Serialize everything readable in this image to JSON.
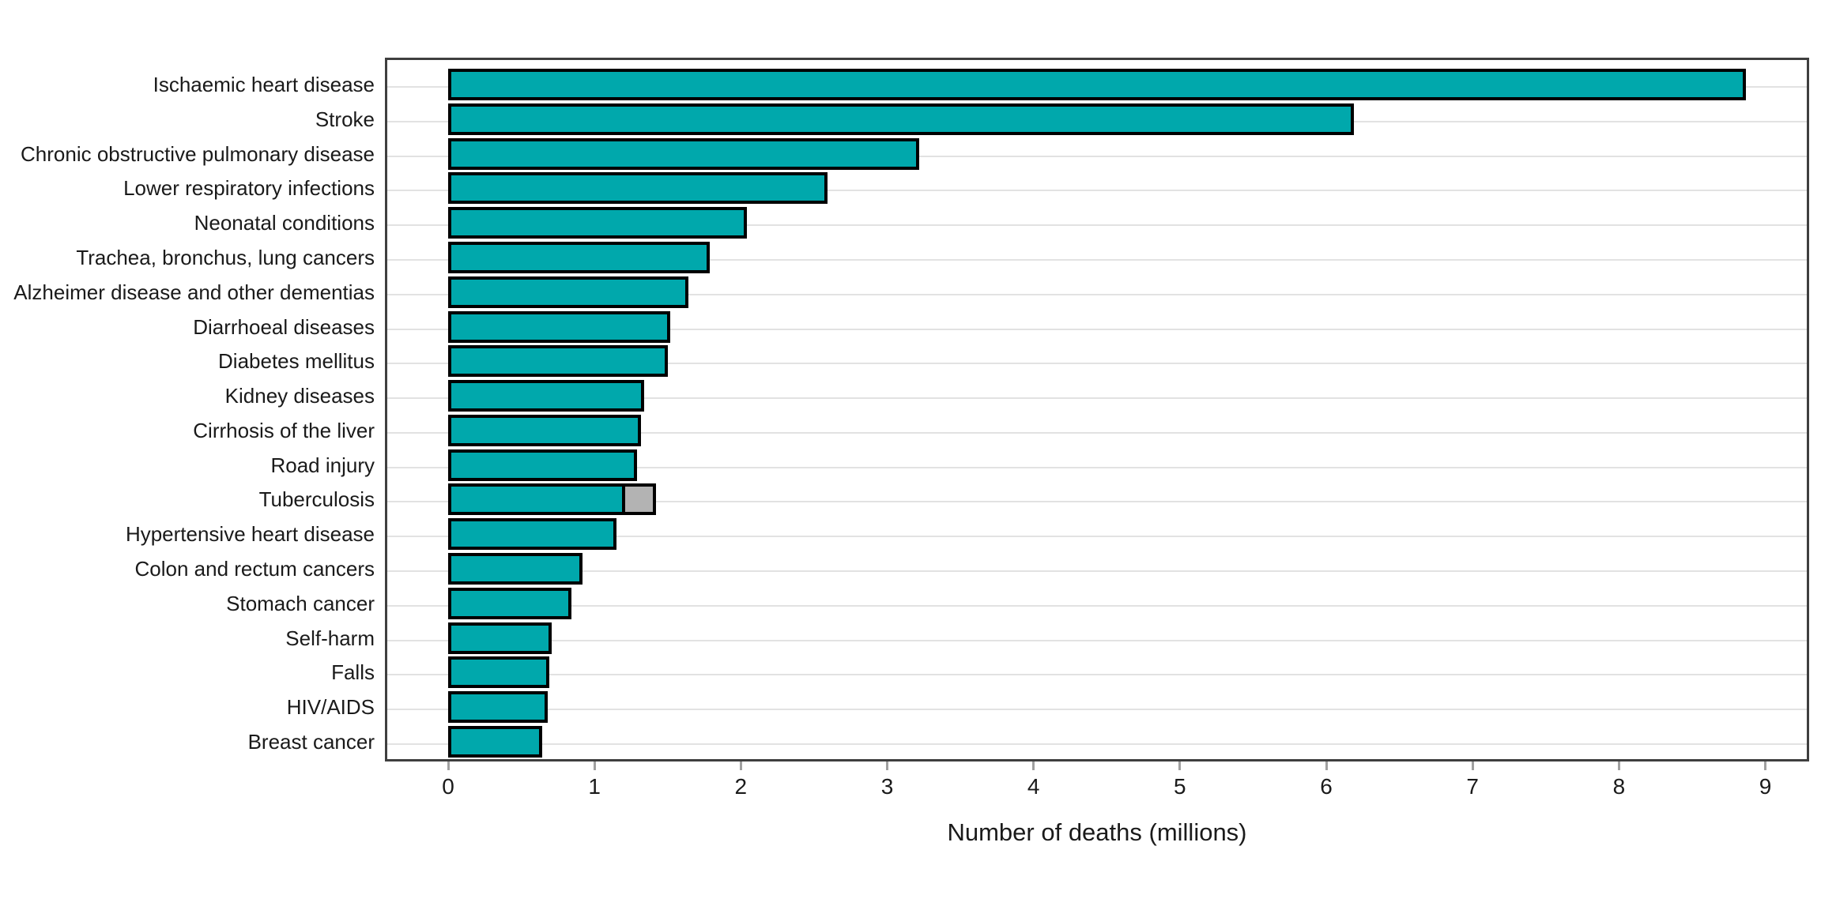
{
  "chart_data": {
    "type": "bar",
    "orientation": "horizontal",
    "title": "",
    "xlabel": "Number of deaths (millions)",
    "ylabel": "",
    "xlim": [
      0,
      9.3
    ],
    "x_ticks": [
      0,
      1,
      2,
      3,
      4,
      5,
      6,
      7,
      8,
      9
    ],
    "grid": "horizontal category gridlines only, no vertical gridlines",
    "legend": "none",
    "bar_color": "#00a8ac",
    "bar_border_color": "#000000",
    "gridline_color": "#e2e2e2",
    "panel_border_color": "#3f3f3f",
    "categories": [
      "Ischaemic heart disease",
      "Stroke",
      "Chronic obstructive pulmonary disease",
      "Lower respiratory infections",
      "Neonatal conditions",
      "Trachea, bronchus, lung cancers",
      "Alzheimer disease and other dementias",
      "Diarrhoeal diseases",
      "Diabetes mellitus",
      "Kidney diseases",
      "Cirrhosis of the liver",
      "Road injury",
      "Tuberculosis",
      "Hypertensive heart disease",
      "Colon and rectum cancers",
      "Stomach cancer",
      "Self-harm",
      "Falls",
      "HIV/AIDS",
      "Breast cancer"
    ],
    "values": [
      8.87,
      6.19,
      3.22,
      2.59,
      2.04,
      1.79,
      1.64,
      1.52,
      1.5,
      1.34,
      1.32,
      1.29,
      1.21,
      1.15,
      0.92,
      0.84,
      0.71,
      0.69,
      0.68,
      0.64
    ],
    "extra_segment": {
      "category": "Tuberculosis",
      "from": 1.21,
      "to": 1.42,
      "color": "#b3b3b3"
    }
  }
}
